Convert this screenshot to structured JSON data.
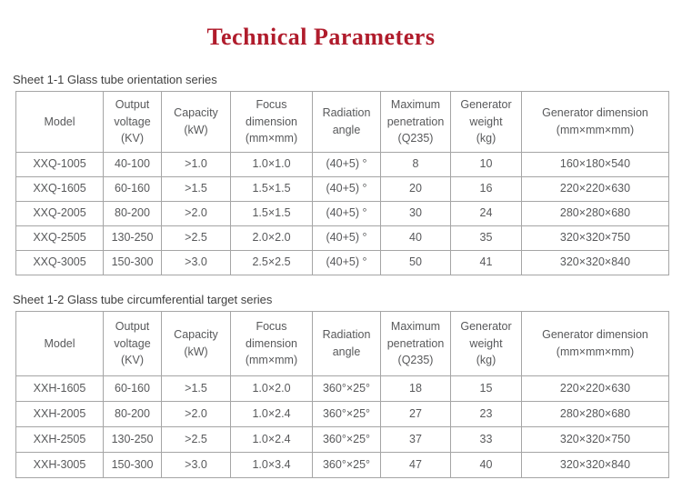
{
  "title": "Technical Parameters",
  "colors": {
    "title_red": "#b01c2c",
    "table_text_gray": "#58595b",
    "border_gray": "#a5a5a5"
  },
  "tables": [
    {
      "caption": "Sheet 1-1 Glass tube orientation series",
      "headers": [
        "Model",
        "Output\nvoltage\n(KV)",
        "Capacity\n(kW)",
        "Focus\ndimension\n(mm×mm)",
        "Radiation\nangle",
        "Maximum\npenetration\n(Q235)",
        "Generator\nweight\n(kg)",
        "Generator dimension\n(mm×mm×mm)"
      ],
      "rows": [
        [
          "XXQ-1005",
          "40-100",
          ">1.0",
          "1.0×1.0",
          "(40+5) °",
          "8",
          "10",
          "160×180×540"
        ],
        [
          "XXQ-1605",
          "60-160",
          ">1.5",
          "1.5×1.5",
          "(40+5) °",
          "20",
          "16",
          "220×220×630"
        ],
        [
          "XXQ-2005",
          "80-200",
          ">2.0",
          "1.5×1.5",
          "(40+5) °",
          "30",
          "24",
          "280×280×680"
        ],
        [
          "XXQ-2505",
          "130-250",
          ">2.5",
          "2.0×2.0",
          "(40+5) °",
          "40",
          "35",
          "320×320×750"
        ],
        [
          "XXQ-3005",
          "150-300",
          ">3.0",
          "2.5×2.5",
          "(40+5) °",
          "50",
          "41",
          "320×320×840"
        ]
      ]
    },
    {
      "caption": "Sheet 1-2 Glass tube circumferential target series",
      "headers": [
        "Model",
        "Output\nvoltage\n(KV)",
        "Capacity\n(kW)",
        "Focus\ndimension\n(mm×mm)",
        "Radiation\nangle",
        "Maximum\npenetration\n(Q235)",
        "Generator\nweight\n(kg)",
        "Generator dimension\n(mm×mm×mm)"
      ],
      "rows": [
        [
          "XXH-1605",
          "60-160",
          ">1.5",
          "1.0×2.0",
          "360°×25°",
          "18",
          "15",
          "220×220×630"
        ],
        [
          "XXH-2005",
          "80-200",
          ">2.0",
          "1.0×2.4",
          "360°×25°",
          "27",
          "23",
          "280×280×680"
        ],
        [
          "XXH-2505",
          "130-250",
          ">2.5",
          "1.0×2.4",
          "360°×25°",
          "37",
          "33",
          "320×320×750"
        ],
        [
          "XXH-3005",
          "150-300",
          ">3.0",
          "1.0×3.4",
          "360°×25°",
          "47",
          "40",
          "320×320×840"
        ]
      ]
    }
  ]
}
